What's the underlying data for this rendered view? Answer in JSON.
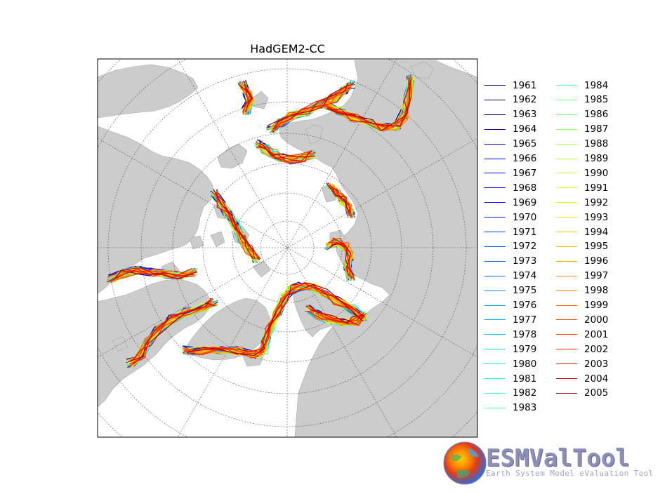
{
  "chart_data": {
    "type": "line",
    "title": "HadGEM2-CC",
    "projection": "north-polar-stereographic",
    "graticule": "dashed",
    "land_color": "#cccccc",
    "series": [
      {
        "name": "1961",
        "color": "#00007f"
      },
      {
        "name": "1962",
        "color": "#00008b"
      },
      {
        "name": "1963",
        "color": "#000099"
      },
      {
        "name": "1964",
        "color": "#0000ad"
      },
      {
        "name": "1965",
        "color": "#0000c1"
      },
      {
        "name": "1966",
        "color": "#0000d5"
      },
      {
        "name": "1967",
        "color": "#0000ea"
      },
      {
        "name": "1968",
        "color": "#0000ff"
      },
      {
        "name": "1969",
        "color": "#0014ff"
      },
      {
        "name": "1970",
        "color": "#0028ff"
      },
      {
        "name": "1971",
        "color": "#003cff"
      },
      {
        "name": "1972",
        "color": "#0050ff"
      },
      {
        "name": "1973",
        "color": "#0064ff"
      },
      {
        "name": "1974",
        "color": "#0078ff"
      },
      {
        "name": "1975",
        "color": "#008cff"
      },
      {
        "name": "1976",
        "color": "#00a0ff"
      },
      {
        "name": "1977",
        "color": "#00b4ff"
      },
      {
        "name": "1978",
        "color": "#00c8ff"
      },
      {
        "name": "1979",
        "color": "#00dcfe"
      },
      {
        "name": "1980",
        "color": "#0cf0eb"
      },
      {
        "name": "1981",
        "color": "#1fffd7"
      },
      {
        "name": "1982",
        "color": "#33ffc4"
      },
      {
        "name": "1983",
        "color": "#46ffb0"
      },
      {
        "name": "1984",
        "color": "#5aff9c"
      },
      {
        "name": "1985",
        "color": "#6dff89"
      },
      {
        "name": "1986",
        "color": "#81ff75"
      },
      {
        "name": "1987",
        "color": "#94ff62"
      },
      {
        "name": "1988",
        "color": "#a8ff4e"
      },
      {
        "name": "1989",
        "color": "#bbff3b"
      },
      {
        "name": "1990",
        "color": "#cfff27"
      },
      {
        "name": "1991",
        "color": "#e2ff14"
      },
      {
        "name": "1992",
        "color": "#f6f500"
      },
      {
        "name": "1993",
        "color": "#ffe200"
      },
      {
        "name": "1994",
        "color": "#ffce00"
      },
      {
        "name": "1995",
        "color": "#ffb900"
      },
      {
        "name": "1996",
        "color": "#ffa400"
      },
      {
        "name": "1997",
        "color": "#ff9000"
      },
      {
        "name": "1998",
        "color": "#ff7b00"
      },
      {
        "name": "1999",
        "color": "#ff6700"
      },
      {
        "name": "2000",
        "color": "#ff5200"
      },
      {
        "name": "2001",
        "color": "#ff3e00"
      },
      {
        "name": "2002",
        "color": "#ff2900"
      },
      {
        "name": "2003",
        "color": "#f61400"
      },
      {
        "name": "2004",
        "color": "#d50000"
      },
      {
        "name": "2005",
        "color": "#b20000"
      }
    ],
    "legend_placement": "right, two columns",
    "colormap": "jet"
  },
  "logo": {
    "name": "ESMValTool",
    "subtitle": "Earth System Model eValuation Tool"
  }
}
